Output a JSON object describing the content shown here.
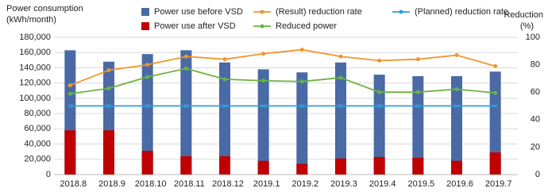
{
  "chart_data": {
    "type": "combo",
    "y_label": [
      "Power consumption",
      "(kWh/month)"
    ],
    "y2_label": [
      "Reduction",
      "(%)"
    ],
    "categories": [
      "2018.8",
      "2018.9",
      "2018.10",
      "2018.11",
      "2018.12",
      "2019.1",
      "2019.2",
      "2019.3",
      "2019.4",
      "2019.5",
      "2019.6",
      "2019.7"
    ],
    "ylim": [
      0,
      180000
    ],
    "yticks": [
      0,
      {
        "value": 20000,
        "label": "20,000"
      },
      {
        "value": 40000,
        "label": "40,000"
      },
      {
        "value": 60000,
        "label": "60,000"
      },
      {
        "value": 80000,
        "label": "80,000"
      },
      {
        "value": 100000,
        "label": "100,000"
      },
      {
        "value": 120000,
        "label": "120,000"
      },
      {
        "value": 140000,
        "label": "140,000"
      },
      {
        "value": 160000,
        "label": "160,000"
      },
      {
        "value": 180000,
        "label": "180,000"
      }
    ],
    "y2lim": [
      0,
      100
    ],
    "y2ticks": [
      0,
      20,
      40,
      60,
      80,
      100
    ],
    "grid": true,
    "series": [
      {
        "name": "Power use before VSD",
        "type": "bar",
        "color": "#4a6aa5",
        "values": [
          163000,
          148000,
          158000,
          163000,
          147000,
          138000,
          134000,
          147000,
          131000,
          129000,
          129000,
          135000
        ]
      },
      {
        "name": "Power use after VSD",
        "type": "bar",
        "color": "#c00000",
        "values": [
          58000,
          58000,
          31000,
          24000,
          24000,
          18000,
          14000,
          21000,
          23000,
          22000,
          18000,
          29000
        ]
      },
      {
        "name": "(Result) reduction rate",
        "type": "line",
        "axis": "y2",
        "color": "#f0962e",
        "values": [
          65,
          76,
          80,
          86,
          84,
          88,
          91,
          86,
          83,
          84,
          87,
          79
        ]
      },
      {
        "name": "Reduced power",
        "type": "line",
        "color": "#6db33f",
        "values": [
          106000,
          113000,
          128000,
          139000,
          125000,
          123000,
          122000,
          127000,
          108000,
          108000,
          112000,
          107000
        ]
      },
      {
        "name": "(Planned) reduction rate",
        "type": "line",
        "axis": "y2",
        "color": "#2f9fd8",
        "values": [
          50,
          50,
          50,
          50,
          50,
          50,
          50,
          50,
          50,
          50,
          50,
          50
        ]
      }
    ]
  }
}
